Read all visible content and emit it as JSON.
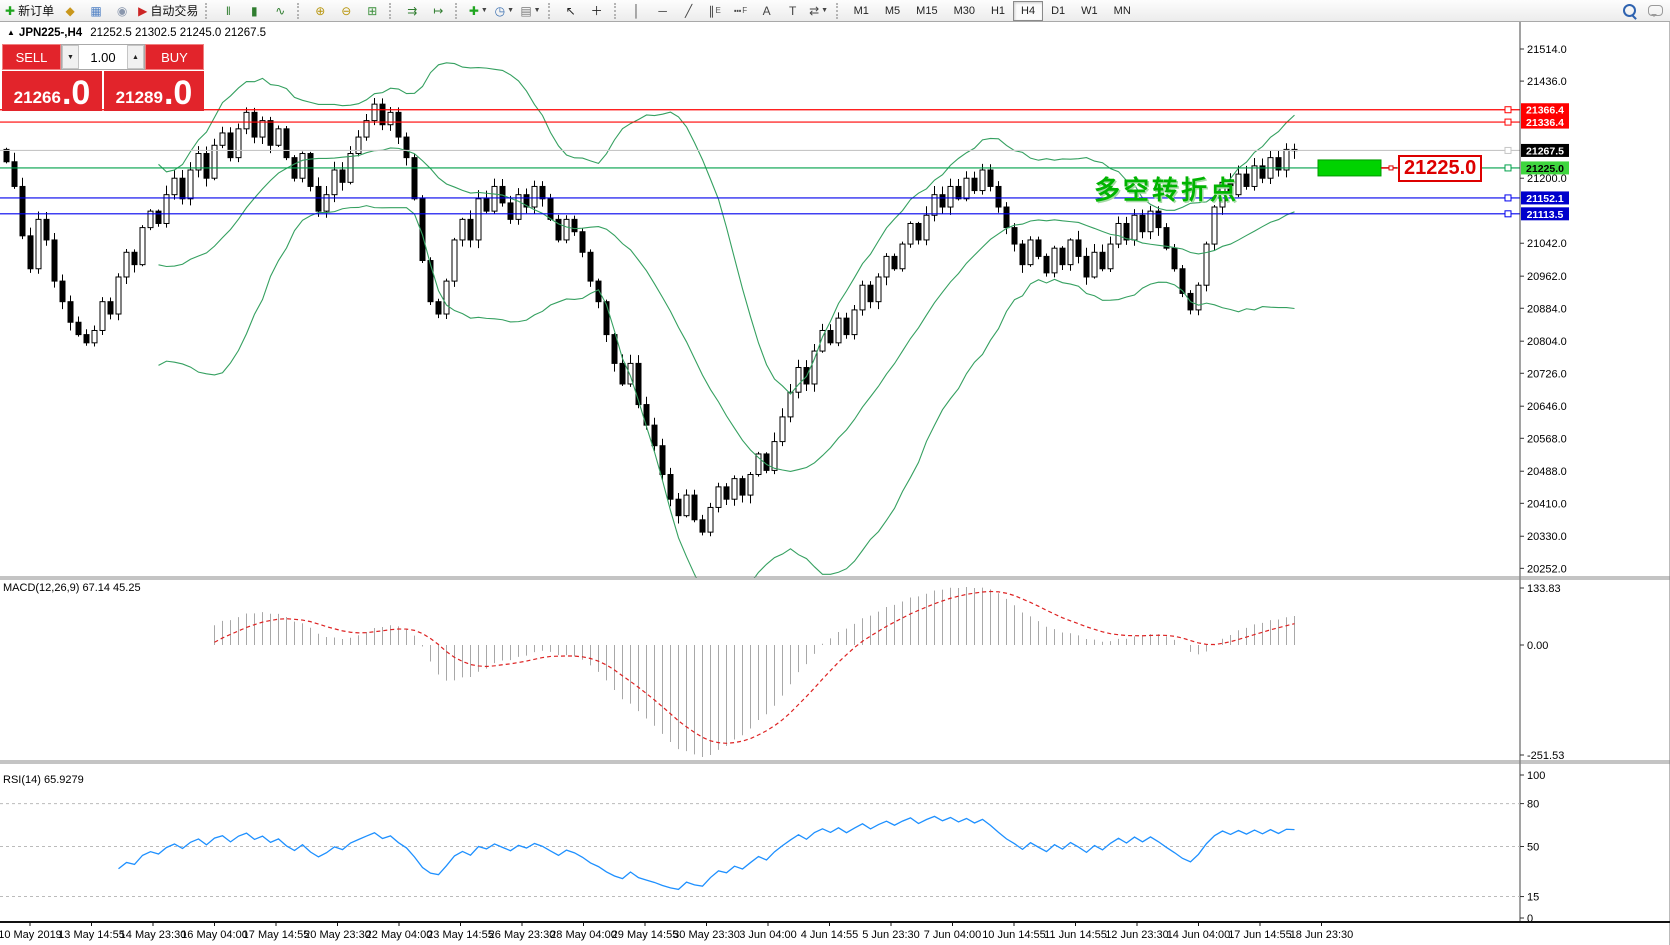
{
  "toolbar": {
    "left_buttons": [
      {
        "name": "new-order-button",
        "icon": "new-order-icon",
        "glyph": "✚",
        "color": "#1fa51f",
        "label": "新订单"
      },
      {
        "name": "profiles-button",
        "icon": "profiles-icon",
        "glyph": "◆",
        "color": "#c9971c",
        "label": ""
      },
      {
        "name": "charts-button",
        "icon": "charts-icon",
        "glyph": "▦",
        "color": "#4d7fc4",
        "label": ""
      },
      {
        "name": "signals-button",
        "icon": "signals-icon",
        "glyph": "◉",
        "color": "#8a97ad",
        "label": ""
      },
      {
        "name": "autotrading-button",
        "icon": "autotrading-icon",
        "glyph": "▶",
        "color": "#cc2525",
        "label": "自动交易"
      }
    ],
    "chart_type_buttons": [
      {
        "name": "bar-chart-button",
        "icon": "bar-chart-icon",
        "glyph": "‖",
        "color": "#2f7d2f"
      },
      {
        "name": "candlestick-button",
        "icon": "candlestick-icon",
        "glyph": "▮",
        "color": "#2f7d2f"
      },
      {
        "name": "line-chart-button",
        "icon": "line-chart-icon",
        "glyph": "∿",
        "color": "#2f7d2f"
      }
    ],
    "zoom_buttons": [
      {
        "name": "zoom-in-button",
        "icon": "zoom-in-icon",
        "glyph": "⊕",
        "color": "#b8960e"
      },
      {
        "name": "zoom-out-button",
        "icon": "zoom-out-icon",
        "glyph": "⊖",
        "color": "#b8960e"
      },
      {
        "name": "tile-windows-button",
        "icon": "tile-windows-icon",
        "glyph": "⊞",
        "color": "#3a8f3a"
      }
    ],
    "scroll_buttons": [
      {
        "name": "autoscroll-button",
        "icon": "autoscroll-icon",
        "glyph": "⇉",
        "color": "#2f7d2f"
      },
      {
        "name": "chart-shift-button",
        "icon": "chart-shift-icon",
        "glyph": "↦",
        "color": "#2f7d2f"
      }
    ],
    "dropdown_buttons": [
      {
        "name": "indicators-button",
        "icon": "indicators-icon",
        "glyph": "✚",
        "color": "#1fa51f",
        "caret": true
      },
      {
        "name": "periods-button",
        "icon": "periods-icon",
        "glyph": "◷",
        "color": "#3a6fb0",
        "caret": true
      },
      {
        "name": "templates-button",
        "icon": "templates-icon",
        "glyph": "▤",
        "color": "#777777",
        "caret": true
      }
    ],
    "cursor_buttons": [
      {
        "name": "cursor-tool-button",
        "icon": "cursor-icon",
        "glyph": "↖",
        "color": "#222222"
      },
      {
        "name": "crosshair-tool-button",
        "icon": "crosshair-icon",
        "glyph": "＋",
        "color": "#222222"
      }
    ],
    "object_buttons": [
      {
        "name": "vertical-line-tool",
        "icon": "vertical-line-icon",
        "glyph": "│",
        "color": "#444444"
      },
      {
        "name": "horizontal-line-tool",
        "icon": "horizontal-line-icon",
        "glyph": "─",
        "color": "#444444"
      },
      {
        "name": "trendline-tool",
        "icon": "trendline-icon",
        "glyph": "╱",
        "color": "#444444"
      },
      {
        "name": "equidistant-channel-tool",
        "icon": "channel-icon",
        "glyph": "∥",
        "sub": "E",
        "color": "#444444"
      },
      {
        "name": "fibonacci-tool",
        "icon": "fibonacci-icon",
        "glyph": "┅",
        "sub": "F",
        "color": "#444444"
      },
      {
        "name": "text-tool",
        "icon": "text-icon",
        "glyph": "A",
        "color": "#444444"
      },
      {
        "name": "text-label-tool",
        "icon": "text-label-icon",
        "glyph": "T",
        "color": "#444444"
      },
      {
        "name": "arrows-tool",
        "icon": "arrows-icon",
        "glyph": "⇄",
        "color": "#444444",
        "caret": true
      }
    ],
    "timeframes": [
      "M1",
      "M5",
      "M15",
      "M30",
      "H1",
      "H4",
      "D1",
      "W1",
      "MN"
    ],
    "active_timeframe": "H4"
  },
  "chart_header": {
    "collapse_glyph": "▲",
    "symbol_period": "JPN225-,H4",
    "ohlc_text": "21252.5 21302.5 21245.0 21267.5"
  },
  "quote_panel": {
    "sell_label": "SELL",
    "buy_label": "BUY",
    "volume": "1.00",
    "spin_down": "▼",
    "spin_up": "▲",
    "sell_price_main": "21266",
    "sell_price_dec": ".0",
    "buy_price_main": "21289",
    "buy_price_dec": ".0"
  },
  "chart_data": {
    "type": "candlestick",
    "symbol": "JPN225-",
    "timeframe": "H4",
    "current_ohlc": {
      "open": 21252.5,
      "high": 21302.5,
      "low": 21245.0,
      "close": 21267.5
    },
    "y_ticks": [
      21514.0,
      21436.0,
      21200.0,
      21042.0,
      20962.0,
      20884.0,
      20804.0,
      20726.0,
      20646.0,
      20568.0,
      20488.0,
      20410.0,
      20330.0,
      20252.0
    ],
    "closes": [
      21240,
      21180,
      21060,
      20980,
      21100,
      21050,
      20950,
      20900,
      20850,
      20820,
      20800,
      20830,
      20900,
      20870,
      20960,
      21020,
      20990,
      21080,
      21120,
      21090,
      21160,
      21200,
      21150,
      21220,
      21260,
      21200,
      21280,
      21310,
      21250,
      21320,
      21360,
      21300,
      21340,
      21280,
      21320,
      21250,
      21200,
      21260,
      21180,
      21120,
      21160,
      21220,
      21190,
      21260,
      21300,
      21340,
      21380,
      21330,
      21360,
      21300,
      21250,
      21150,
      21000,
      20900,
      20870,
      20950,
      21050,
      21100,
      21050,
      21150,
      21120,
      21180,
      21140,
      21100,
      21160,
      21130,
      21180,
      21150,
      21100,
      21050,
      21100,
      21070,
      21020,
      20950,
      20900,
      20820,
      20750,
      20700,
      20750,
      20650,
      20600,
      20550,
      20480,
      20420,
      20380,
      20430,
      20370,
      20340,
      20400,
      20450,
      20420,
      20470,
      20430,
      20480,
      20530,
      20490,
      20560,
      20620,
      20680,
      20740,
      20700,
      20780,
      20830,
      20800,
      20860,
      20820,
      20880,
      20940,
      20900,
      20960,
      21010,
      20980,
      21040,
      21090,
      21050,
      21110,
      21160,
      21130,
      21180,
      21150,
      21200,
      21170,
      21220,
      21180,
      21130,
      21080,
      21040,
      20990,
      21050,
      21010,
      20970,
      21030,
      20990,
      21050,
      21010,
      20960,
      21020,
      20980,
      21040,
      21090,
      21050,
      21110,
      21070,
      21120,
      21080,
      21030,
      20980,
      20920,
      20880,
      20940,
      21040,
      21130,
      21190,
      21160,
      21210,
      21180,
      21230,
      21200,
      21250,
      21220,
      21270,
      21267
    ],
    "time_labels": [
      "10 May 2019",
      "13 May 14:55",
      "14 May 23:30",
      "16 May 04:00",
      "17 May 14:55",
      "20 May 23:30",
      "22 May 04:00",
      "23 May 14:55",
      "26 May 23:30",
      "28 May 04:00",
      "29 May 14:55",
      "30 May 23:30",
      "3 Jun 04:00",
      "4 Jun 14:55",
      "5 Jun 23:30",
      "7 Jun 04:00",
      "10 Jun 14:55",
      "11 Jun 14:55",
      "12 Jun 23:30",
      "14 Jun 04:00",
      "17 Jun 14:55",
      "18 Jun 23:30"
    ],
    "horizontal_lines": [
      {
        "price": 21366.4,
        "label": "21366.4",
        "line_color": "#ff0000",
        "tag_bg": "#ff0000",
        "tag_fg": "#ffffff"
      },
      {
        "price": 21336.4,
        "label": "21336.4",
        "line_color": "#ff0000",
        "tag_bg": "#ff0000",
        "tag_fg": "#ffffff"
      },
      {
        "price": 21267.5,
        "label": "21267.5",
        "line_color": "#c6c6c6",
        "tag_bg": "#000000",
        "tag_fg": "#ffffff"
      },
      {
        "price": 21225.0,
        "label": "21225.0",
        "line_color": "#00a14b",
        "tag_bg": "#3fd63f",
        "tag_fg": "#000000"
      },
      {
        "price": 21152.1,
        "label": "21152.1",
        "line_color": "#0000ee",
        "tag_bg": "#0000cc",
        "tag_fg": "#ffffff"
      },
      {
        "price": 21113.5,
        "label": "21113.5",
        "line_color": "#0000ee",
        "tag_bg": "#0000cc",
        "tag_fg": "#ffffff"
      }
    ],
    "indicators": {
      "bollinger": {
        "period": 20,
        "deviation": 2,
        "color": "#35a060"
      },
      "macd": {
        "label": "MACD(12,26,9) 67.14 45.25",
        "fast": 12,
        "slow": 26,
        "signal": 9,
        "current_macd": 67.14,
        "current_signal": 45.25,
        "axis_ticks": [
          "133.83",
          "0.00",
          "-251.53"
        ],
        "hist_color": "#a8a8a8",
        "signal_color": "#dd2222"
      },
      "rsi": {
        "label": "RSI(14) 65.9279",
        "period": 14,
        "current": 65.9279,
        "axis_ticks": [
          100,
          80,
          50,
          15,
          0
        ],
        "levels": [
          80,
          50,
          15
        ],
        "line_color": "#1E90FF"
      }
    },
    "annotations": {
      "turning_point_text": "多空转折点",
      "highlight_price_label": "21225.0",
      "highlight_box_price": 21225.0
    }
  }
}
